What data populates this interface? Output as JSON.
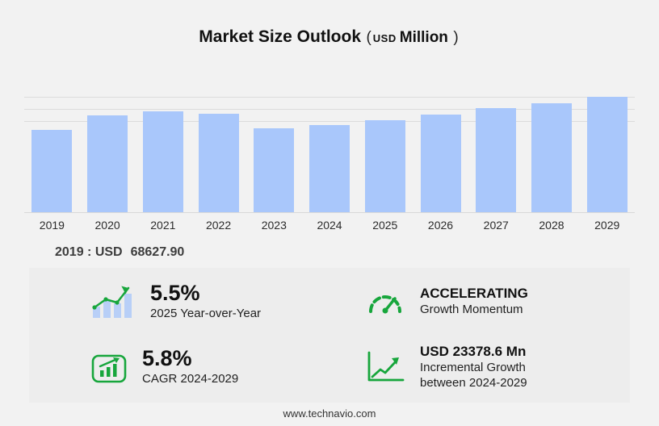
{
  "title": {
    "text": "Market Size Outlook",
    "paren_open": "(",
    "currency": "USD",
    "unit": "Million",
    "paren_close": ")"
  },
  "chart_data": {
    "type": "bar",
    "title": "Market Size Outlook (USD Million)",
    "categories": [
      "2019",
      "2020",
      "2021",
      "2022",
      "2023",
      "2024",
      "2025",
      "2026",
      "2027",
      "2028",
      "2029"
    ],
    "values": [
      68627.9,
      80300,
      83700,
      81700,
      70100,
      72750,
      76750,
      80900,
      86400,
      90600,
      96130
    ],
    "xlabel": "",
    "ylabel": "USD Million",
    "ylim": [
      0,
      100000
    ],
    "gridlines": [
      75000,
      85000,
      95000
    ],
    "grid": "horizontal-top-only",
    "legend": "none",
    "bar_color": "#a9c7fb"
  },
  "annotation": {
    "label": "2019 : USD",
    "value": "68627.90"
  },
  "stats": {
    "yoy": {
      "value": "5.5%",
      "label": "2025 Year-over-Year"
    },
    "momentum": {
      "value": "ACCELERATING",
      "label": "Growth Momentum"
    },
    "cagr": {
      "value": "5.8%",
      "label": "CAGR 2024-2029"
    },
    "incremental": {
      "value": "USD 23378.6 Mn",
      "label_line1": "Incremental Growth",
      "label_line2": "between 2024-2029"
    }
  },
  "colors": {
    "accent_green": "#17a63c",
    "bar_blue": "#a9c7fb",
    "icon_bar_blue": "#b8cff7"
  },
  "footer": {
    "url": "www.technavio.com"
  }
}
